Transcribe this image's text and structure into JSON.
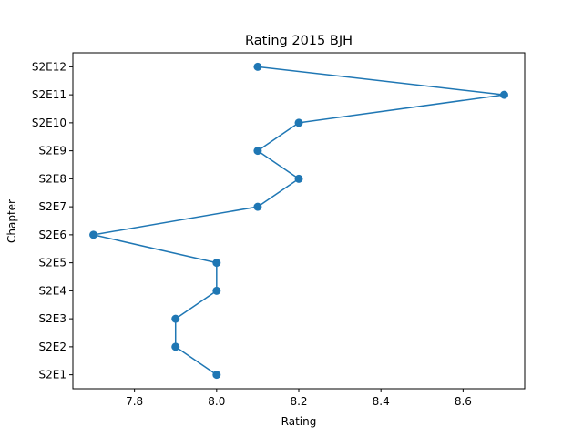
{
  "chart_data": {
    "type": "line",
    "title": "Rating 2015 BJH",
    "xlabel": "Rating",
    "ylabel": "Chapter",
    "orientation": "horizontal",
    "categories": [
      "S2E1",
      "S2E2",
      "S2E3",
      "S2E4",
      "S2E5",
      "S2E6",
      "S2E7",
      "S2E8",
      "S2E9",
      "S2E10",
      "S2E11",
      "S2E12"
    ],
    "values": [
      8.0,
      7.9,
      7.9,
      8.0,
      8.0,
      7.7,
      8.1,
      8.2,
      8.1,
      8.2,
      8.7,
      8.1
    ],
    "xlim": [
      7.65,
      8.75
    ],
    "xticks": [
      7.8,
      8.0,
      8.2,
      8.4,
      8.6
    ],
    "xtick_labels": [
      "7.8",
      "8.0",
      "8.2",
      "8.4",
      "8.6"
    ],
    "grid": false,
    "legend": "none",
    "line_color": "#1f77b4",
    "marker": "circle"
  }
}
